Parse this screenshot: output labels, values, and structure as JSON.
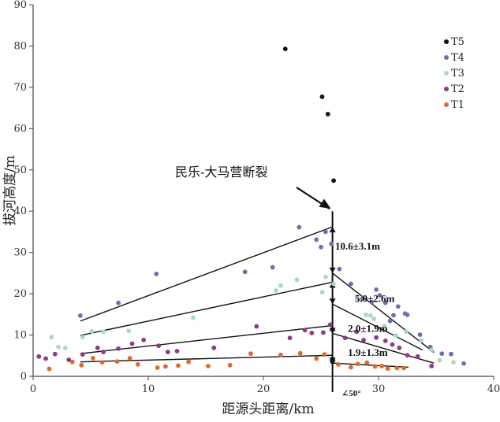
{
  "chart_data": {
    "type": "scatter",
    "xlabel": "距源头距离/km",
    "ylabel": "拔河高度/m",
    "xlim": [
      0,
      40
    ],
    "ylim": [
      0,
      90
    ],
    "x_ticks": [
      "0",
      "10",
      "20",
      "30",
      "40"
    ],
    "y_ticks": [
      "0",
      "10",
      "20",
      "30",
      "40",
      "50",
      "60",
      "70",
      "80",
      "90"
    ],
    "grid": false,
    "legend_position": "top-right",
    "fault": {
      "label": "民乐-大马营断裂",
      "x": 26.0,
      "angle_label": "∠50°"
    },
    "offset_labels": [
      {
        "text": "10.6±3.1m",
        "x": 26.1,
        "y": 31.5
      },
      {
        "text": "5.0±2.6m",
        "x": 27.8,
        "y": 18.8
      },
      {
        "text": "2.0±1.9m",
        "x": 27.2,
        "y": 11.5
      },
      {
        "text": "1.9±1.3m",
        "x": 27.2,
        "y": 5.7
      }
    ],
    "series": [
      {
        "name": "T5",
        "color": "#111111",
        "points": [
          [
            21.9,
            79.3
          ],
          [
            25.1,
            67.7
          ],
          [
            25.6,
            63.5
          ],
          [
            26.1,
            47.4
          ],
          [
            26.0,
            3.5
          ]
        ]
      },
      {
        "name": "T4",
        "color": "#6f6fb2",
        "points": [
          [
            4.1,
            14.7
          ],
          [
            7.4,
            17.8
          ],
          [
            10.7,
            24.8
          ],
          [
            18.4,
            25.3
          ],
          [
            20.8,
            26.4
          ],
          [
            23.1,
            36.1
          ],
          [
            24.6,
            33.1
          ],
          [
            25.4,
            35.0
          ],
          [
            25.0,
            31.3
          ],
          [
            25.9,
            32.1
          ],
          [
            26.6,
            26.0
          ],
          [
            27.6,
            22.4
          ],
          [
            28.6,
            18.8
          ],
          [
            29.4,
            18.0
          ],
          [
            29.8,
            21.0
          ],
          [
            30.1,
            19.6
          ],
          [
            30.6,
            17.8
          ],
          [
            31.0,
            13.4
          ],
          [
            31.3,
            14.8
          ],
          [
            31.7,
            16.9
          ],
          [
            32.3,
            15.2
          ],
          [
            32.5,
            14.9
          ],
          [
            33.6,
            10.1
          ],
          [
            34.5,
            7.1
          ],
          [
            35.5,
            5.5
          ],
          [
            36.3,
            5.4
          ],
          [
            37.4,
            3.1
          ]
        ]
      },
      {
        "name": "T3",
        "color": "#a6dcbe",
        "points": [
          [
            1.6,
            9.5
          ],
          [
            2.2,
            7.1
          ],
          [
            2.8,
            6.9
          ],
          [
            4.3,
            9.5
          ],
          [
            5.1,
            10.9
          ],
          [
            6.1,
            10.8
          ],
          [
            8.3,
            11.0
          ],
          [
            13.9,
            14.2
          ],
          [
            21.1,
            20.8
          ],
          [
            21.5,
            22.0
          ],
          [
            22.9,
            23.4
          ],
          [
            25.1,
            20.4
          ],
          [
            25.4,
            24.1
          ],
          [
            26.1,
            22.4
          ],
          [
            28.2,
            18.8
          ],
          [
            28.9,
            14.9
          ],
          [
            29.3,
            14.7
          ],
          [
            29.6,
            13.9
          ],
          [
            30.5,
            12.2
          ],
          [
            31.5,
            9.9
          ],
          [
            32.4,
            10.8
          ],
          [
            33.7,
            8.7
          ],
          [
            34.6,
            6.4
          ],
          [
            35.3,
            3.9
          ],
          [
            36.5,
            3.4
          ]
        ]
      },
      {
        "name": "T2",
        "color": "#8e3a8a",
        "points": [
          [
            0.5,
            4.8
          ],
          [
            1.1,
            4.3
          ],
          [
            1.9,
            5.4
          ],
          [
            3.1,
            4.0
          ],
          [
            4.3,
            5.3
          ],
          [
            5.6,
            6.9
          ],
          [
            6.1,
            5.9
          ],
          [
            7.4,
            6.7
          ],
          [
            8.6,
            7.9
          ],
          [
            9.6,
            8.8
          ],
          [
            10.9,
            7.4
          ],
          [
            11.7,
            5.9
          ],
          [
            12.5,
            6.1
          ],
          [
            15.7,
            6.9
          ],
          [
            19.4,
            12.1
          ],
          [
            22.3,
            9.3
          ],
          [
            23.6,
            11.2
          ],
          [
            24.2,
            10.5
          ],
          [
            25.2,
            10.6
          ],
          [
            25.8,
            12.5
          ],
          [
            27.1,
            9.3
          ],
          [
            28.1,
            10.8
          ],
          [
            28.7,
            8.8
          ],
          [
            29.8,
            9.4
          ],
          [
            30.6,
            8.6
          ],
          [
            31.2,
            7.7
          ],
          [
            31.8,
            6.9
          ],
          [
            32.5,
            5.1
          ],
          [
            33.4,
            4.8
          ],
          [
            34.6,
            2.5
          ]
        ]
      },
      {
        "name": "T1",
        "color": "#e0682a",
        "points": [
          [
            1.4,
            1.8
          ],
          [
            3.4,
            3.5
          ],
          [
            4.2,
            2.7
          ],
          [
            5.2,
            4.4
          ],
          [
            6.0,
            3.4
          ],
          [
            7.3,
            3.6
          ],
          [
            8.4,
            4.4
          ],
          [
            9.1,
            2.9
          ],
          [
            10.8,
            2.1
          ],
          [
            11.5,
            2.4
          ],
          [
            12.6,
            2.6
          ],
          [
            13.5,
            3.5
          ],
          [
            15.2,
            2.5
          ],
          [
            17.1,
            2.7
          ],
          [
            18.9,
            5.5
          ],
          [
            21.5,
            5.2
          ],
          [
            23.2,
            5.6
          ],
          [
            24.6,
            4.3
          ],
          [
            25.3,
            5.3
          ],
          [
            26.5,
            2.9
          ],
          [
            27.6,
            2.2
          ],
          [
            28.2,
            3.0
          ],
          [
            29.0,
            3.3
          ],
          [
            29.7,
            2.4
          ],
          [
            30.3,
            2.5
          ],
          [
            30.8,
            1.9
          ],
          [
            31.6,
            2.0
          ],
          [
            32.2,
            2.0
          ]
        ]
      }
    ],
    "fit_lines": [
      {
        "terrace": "T4",
        "segments": [
          [
            [
              4.1,
              13.4
            ],
            [
              26.0,
              36.2
            ]
          ],
          [
            [
              26.0,
              25.0
            ],
            [
              34.8,
              5.8
            ]
          ]
        ]
      },
      {
        "terrace": "T3",
        "segments": [
          [
            [
              4.1,
              9.9
            ],
            [
              26.0,
              22.8
            ]
          ],
          [
            [
              26.0,
              17.5
            ],
            [
              33.8,
              6.4
            ]
          ]
        ]
      },
      {
        "terrace": "T2",
        "segments": [
          [
            [
              4.1,
              5.5
            ],
            [
              26.0,
              12.3
            ]
          ],
          [
            [
              26.0,
              10.4
            ],
            [
              34.8,
              3.2
            ]
          ]
        ]
      },
      {
        "terrace": "T1",
        "segments": [
          [
            [
              4.1,
              3.5
            ],
            [
              26.0,
              5.1
            ]
          ],
          [
            [
              26.0,
              3.2
            ],
            [
              32.6,
              2.2
            ]
          ]
        ]
      }
    ]
  }
}
